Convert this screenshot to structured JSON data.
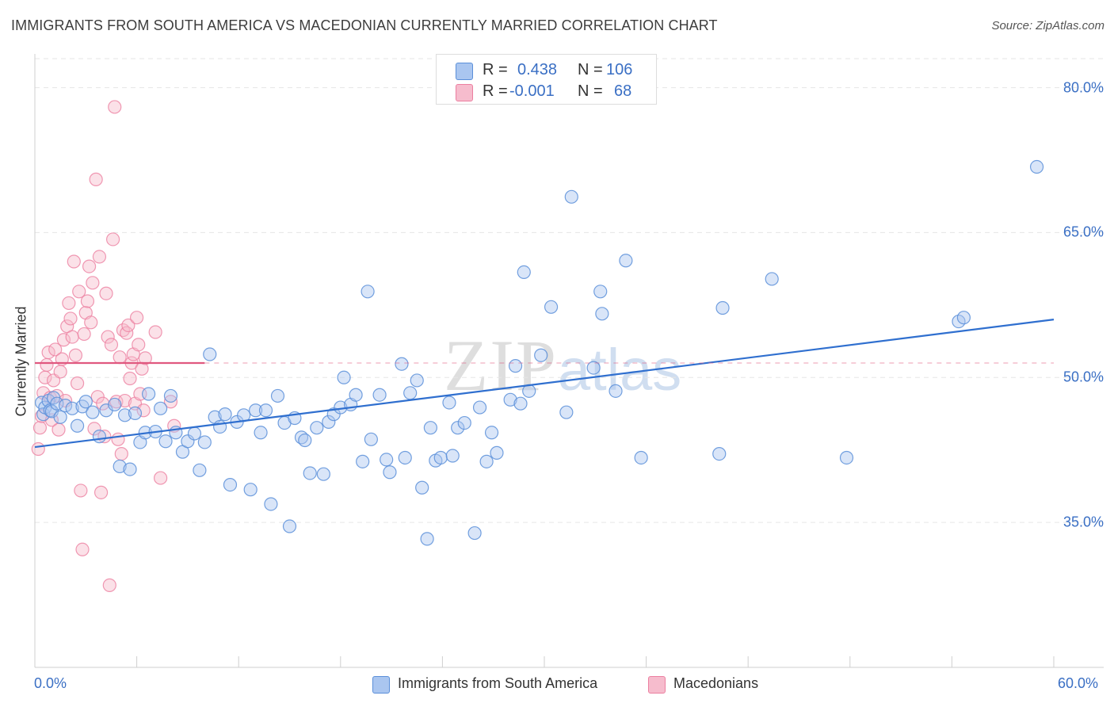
{
  "title": "IMMIGRANTS FROM SOUTH AMERICA VS MACEDONIAN CURRENTLY MARRIED CORRELATION CHART",
  "source": "Source: ZipAtlas.com",
  "watermark": {
    "zip": "ZIP",
    "atlas": "atlas"
  },
  "colors": {
    "blue": "#5b8fd9",
    "blue_fill": "#aac6f0",
    "pink": "#ec7fa0",
    "pink_fill": "#f6bccd",
    "blue_line": "#2f6fcf",
    "pink_line": "#e0587f",
    "tick_text": "#3a6fc4"
  },
  "legend_top": [
    {
      "r_label": "R =",
      "r_value": "0.438",
      "n_label": "N =",
      "n_value": "106"
    },
    {
      "r_label": "R =",
      "r_value": "-0.001",
      "n_label": "N =",
      "n_value": "68"
    }
  ],
  "legend_bottom": [
    "Immigrants from South America",
    "Macedonians"
  ],
  "chart_data": {
    "type": "scatter",
    "title": "IMMIGRANTS FROM SOUTH AMERICA VS MACEDONIAN CURRENTLY MARRIED CORRELATION CHART",
    "xlabel": "",
    "ylabel": "Currently Married",
    "xlim": [
      0,
      60
    ],
    "ylim": [
      20,
      83
    ],
    "x_tick_labels": [
      "0.0%",
      "60.0%"
    ],
    "y_ticks": [
      35,
      50,
      65,
      80
    ],
    "y_tick_labels": [
      "35.0%",
      "50.0%",
      "65.0%",
      "80.0%"
    ],
    "series": [
      {
        "name": "Immigrants from South America",
        "R": 0.438,
        "N": 106,
        "trend": {
          "x": [
            0,
            60
          ],
          "y": [
            42.8,
            56.0
          ]
        },
        "points": [
          [
            0.4,
            47.4
          ],
          [
            0.5,
            46.2
          ],
          [
            0.6,
            46.9
          ],
          [
            0.8,
            47.6
          ],
          [
            0.9,
            46.6
          ],
          [
            1.0,
            46.5
          ],
          [
            1.1,
            47.9
          ],
          [
            1.3,
            47.3
          ],
          [
            1.5,
            45.9
          ],
          [
            1.8,
            47.1
          ],
          [
            2.2,
            46.8
          ],
          [
            2.5,
            45.0
          ],
          [
            2.8,
            47.0
          ],
          [
            3.0,
            47.5
          ],
          [
            3.4,
            46.4
          ],
          [
            3.8,
            43.9
          ],
          [
            4.2,
            46.6
          ],
          [
            4.7,
            47.2
          ],
          [
            5.0,
            40.8
          ],
          [
            5.3,
            46.1
          ],
          [
            5.6,
            40.5
          ],
          [
            5.9,
            46.3
          ],
          [
            6.2,
            43.3
          ],
          [
            6.5,
            44.3
          ],
          [
            6.7,
            48.3
          ],
          [
            7.1,
            44.4
          ],
          [
            7.4,
            46.8
          ],
          [
            7.7,
            43.4
          ],
          [
            8.0,
            48.1
          ],
          [
            8.3,
            44.3
          ],
          [
            8.7,
            42.3
          ],
          [
            9.0,
            43.4
          ],
          [
            9.4,
            44.2
          ],
          [
            9.7,
            40.4
          ],
          [
            10.0,
            43.3
          ],
          [
            10.3,
            52.4
          ],
          [
            10.6,
            45.9
          ],
          [
            10.9,
            44.9
          ],
          [
            11.2,
            46.2
          ],
          [
            11.5,
            38.9
          ],
          [
            11.9,
            45.4
          ],
          [
            12.3,
            46.1
          ],
          [
            12.7,
            38.4
          ],
          [
            13.0,
            46.6
          ],
          [
            13.3,
            44.3
          ],
          [
            13.6,
            46.6
          ],
          [
            13.9,
            36.9
          ],
          [
            14.3,
            48.1
          ],
          [
            14.7,
            45.3
          ],
          [
            15.0,
            34.6
          ],
          [
            15.3,
            45.8
          ],
          [
            15.7,
            43.8
          ],
          [
            15.9,
            43.5
          ],
          [
            16.2,
            40.1
          ],
          [
            16.6,
            44.8
          ],
          [
            17.0,
            40.0
          ],
          [
            17.3,
            45.4
          ],
          [
            17.6,
            46.2
          ],
          [
            18.0,
            46.9
          ],
          [
            18.2,
            50.0
          ],
          [
            18.6,
            47.2
          ],
          [
            18.9,
            48.2
          ],
          [
            19.3,
            41.3
          ],
          [
            19.6,
            58.9
          ],
          [
            19.8,
            43.6
          ],
          [
            20.3,
            48.2
          ],
          [
            20.7,
            41.5
          ],
          [
            20.9,
            40.2
          ],
          [
            21.6,
            51.4
          ],
          [
            21.8,
            41.7
          ],
          [
            22.1,
            48.4
          ],
          [
            22.5,
            49.7
          ],
          [
            22.8,
            38.6
          ],
          [
            23.1,
            33.3
          ],
          [
            23.3,
            44.8
          ],
          [
            23.6,
            41.4
          ],
          [
            23.9,
            41.7
          ],
          [
            24.4,
            47.4
          ],
          [
            24.6,
            41.9
          ],
          [
            24.9,
            44.8
          ],
          [
            25.3,
            45.3
          ],
          [
            25.9,
            33.9
          ],
          [
            26.2,
            46.9
          ],
          [
            26.6,
            41.3
          ],
          [
            26.9,
            44.3
          ],
          [
            27.2,
            42.2
          ],
          [
            28.0,
            47.7
          ],
          [
            28.3,
            51.2
          ],
          [
            28.6,
            47.3
          ],
          [
            28.8,
            60.9
          ],
          [
            29.1,
            48.6
          ],
          [
            29.8,
            52.3
          ],
          [
            30.4,
            57.3
          ],
          [
            31.3,
            46.4
          ],
          [
            31.6,
            68.7
          ],
          [
            32.9,
            51.0
          ],
          [
            33.3,
            58.9
          ],
          [
            33.4,
            56.6
          ],
          [
            34.2,
            48.6
          ],
          [
            34.8,
            62.1
          ],
          [
            35.7,
            41.7
          ],
          [
            40.3,
            42.1
          ],
          [
            40.5,
            57.2
          ],
          [
            43.4,
            60.2
          ],
          [
            47.8,
            41.7
          ],
          [
            54.4,
            55.8
          ],
          [
            54.7,
            56.2
          ],
          [
            59.0,
            71.8
          ]
        ]
      },
      {
        "name": "Macedonians",
        "R": -0.001,
        "N": 68,
        "trend": {
          "x": [
            0,
            10
          ],
          "y": [
            51.5,
            51.5
          ]
        },
        "points": [
          [
            0.2,
            42.6
          ],
          [
            0.3,
            44.8
          ],
          [
            0.4,
            46.0
          ],
          [
            0.5,
            48.4
          ],
          [
            0.6,
            50.0
          ],
          [
            0.7,
            51.3
          ],
          [
            0.8,
            52.6
          ],
          [
            0.9,
            47.9
          ],
          [
            1.0,
            45.6
          ],
          [
            1.1,
            49.7
          ],
          [
            1.2,
            52.9
          ],
          [
            1.3,
            48.1
          ],
          [
            1.4,
            44.6
          ],
          [
            1.5,
            50.6
          ],
          [
            1.6,
            51.9
          ],
          [
            1.7,
            53.9
          ],
          [
            1.8,
            47.6
          ],
          [
            1.9,
            55.3
          ],
          [
            2.0,
            57.7
          ],
          [
            2.1,
            56.1
          ],
          [
            2.2,
            54.2
          ],
          [
            2.3,
            62.0
          ],
          [
            2.4,
            52.3
          ],
          [
            2.5,
            49.4
          ],
          [
            2.6,
            58.9
          ],
          [
            2.7,
            38.3
          ],
          [
            2.8,
            32.2
          ],
          [
            2.9,
            54.5
          ],
          [
            3.0,
            56.7
          ],
          [
            3.1,
            57.9
          ],
          [
            3.2,
            61.5
          ],
          [
            3.3,
            55.7
          ],
          [
            3.4,
            59.8
          ],
          [
            3.5,
            44.7
          ],
          [
            3.6,
            70.5
          ],
          [
            3.7,
            48.0
          ],
          [
            3.8,
            62.5
          ],
          [
            3.9,
            38.1
          ],
          [
            4.0,
            47.3
          ],
          [
            4.1,
            43.9
          ],
          [
            4.2,
            58.7
          ],
          [
            4.3,
            54.2
          ],
          [
            4.4,
            28.5
          ],
          [
            4.5,
            53.4
          ],
          [
            4.6,
            64.3
          ],
          [
            4.7,
            78.0
          ],
          [
            4.8,
            47.5
          ],
          [
            4.9,
            43.6
          ],
          [
            5.0,
            52.1
          ],
          [
            5.1,
            42.1
          ],
          [
            5.2,
            54.9
          ],
          [
            5.3,
            47.6
          ],
          [
            5.4,
            54.6
          ],
          [
            5.5,
            55.4
          ],
          [
            5.6,
            49.9
          ],
          [
            5.7,
            51.5
          ],
          [
            5.8,
            52.4
          ],
          [
            5.9,
            47.3
          ],
          [
            6.0,
            56.2
          ],
          [
            6.1,
            53.4
          ],
          [
            6.2,
            48.3
          ],
          [
            6.3,
            50.9
          ],
          [
            6.4,
            46.6
          ],
          [
            6.5,
            52.0
          ],
          [
            7.1,
            54.7
          ],
          [
            7.4,
            39.6
          ],
          [
            8.0,
            47.5
          ],
          [
            8.2,
            45.0
          ]
        ]
      }
    ]
  }
}
